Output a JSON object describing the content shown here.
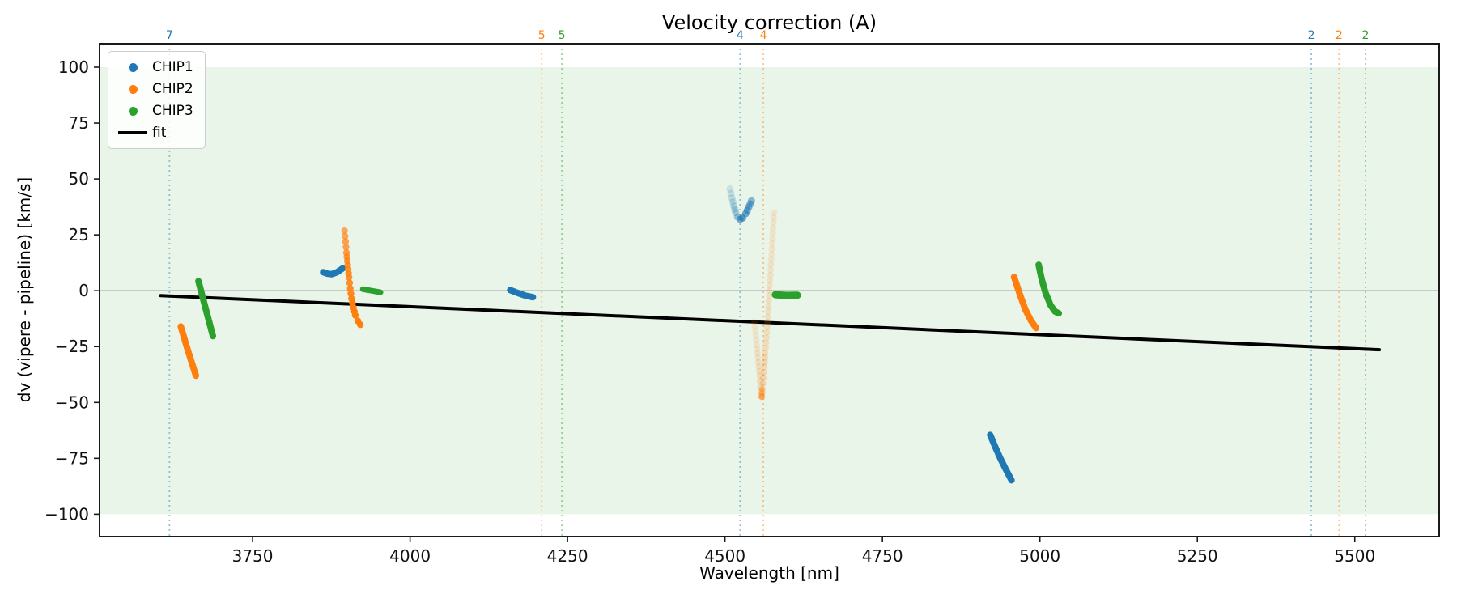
{
  "chart_data": {
    "type": "scatter",
    "title": "Velocity correction (A)",
    "xlabel": "Wavelength [nm]",
    "ylabel": "dv (vipere - pipeline) [km/s]",
    "xlim": [
      3507,
      5634
    ],
    "ylim": [
      -110,
      110.5
    ],
    "xticks": [
      3750,
      4000,
      4250,
      4500,
      4750,
      5000,
      5250,
      5500
    ],
    "yticks": [
      -100,
      -75,
      -50,
      -25,
      0,
      25,
      50,
      75,
      100
    ],
    "grid": false,
    "legend_position": "upper-left",
    "band": {
      "ymin": -100,
      "ymax": 100,
      "color": "#2ca02c",
      "opacity": 0.1
    },
    "zero_line": {
      "y": 0,
      "color": "#888888"
    },
    "fit_line": {
      "name": "fit",
      "color": "#000000",
      "width": 4,
      "points": [
        [
          3604,
          -2.2
        ],
        [
          5539,
          -26.4
        ]
      ]
    },
    "orders": [
      {
        "label": "7",
        "color": "#1f77b4",
        "wavelength": 3618
      },
      {
        "label": "5",
        "color": "#ff7f0e",
        "wavelength": 4209
      },
      {
        "label": "5",
        "color": "#2ca02c",
        "wavelength": 4241
      },
      {
        "label": "4",
        "color": "#1f77b4",
        "wavelength": 4524
      },
      {
        "label": "4",
        "color": "#ff7f0e",
        "wavelength": 4561
      },
      {
        "label": "2",
        "color": "#1f77b4",
        "wavelength": 5431
      },
      {
        "label": "2",
        "color": "#ff7f0e",
        "wavelength": 5475
      },
      {
        "label": "2",
        "color": "#2ca02c",
        "wavelength": 5517
      }
    ],
    "legend": [
      {
        "label": "CHIP1",
        "color": "#1f77b4",
        "marker": "dot"
      },
      {
        "label": "CHIP2",
        "color": "#ff7f0e",
        "marker": "dot"
      },
      {
        "label": "CHIP3",
        "color": "#2ca02c",
        "marker": "dot"
      },
      {
        "label": "fit",
        "color": "#000000",
        "marker": "line"
      }
    ],
    "series": [
      {
        "name": "CHIP1",
        "color": "#1f77b4",
        "clusters": [
          {
            "style": "line",
            "width": 8,
            "points": [
              [
                3862,
                8.3
              ],
              [
                3869,
                7.6
              ],
              [
                3876,
                7.4
              ],
              [
                3884,
                8.3
              ],
              [
                3893,
                10.0
              ]
            ]
          },
          {
            "style": "line",
            "width": 8,
            "points": [
              [
                4159,
                0.3
              ],
              [
                4170,
                -0.9
              ],
              [
                4183,
                -2.2
              ],
              [
                4195,
                -2.9
              ]
            ]
          },
          {
            "style": "dots",
            "r": 4.5,
            "spacing": 5,
            "points": [
              [
                4508,
                45.5
              ],
              [
                4511,
                41.5
              ],
              [
                4514,
                38.0
              ],
              [
                4517,
                35.0
              ],
              [
                4520,
                33.0
              ],
              [
                4524,
                32.0
              ],
              [
                4528,
                32.5
              ],
              [
                4533,
                34.5
              ],
              [
                4538,
                37.5
              ],
              [
                4542,
                40.2
              ]
            ],
            "alphas": [
              0.15,
              0.2,
              0.25,
              0.32,
              0.42,
              0.6,
              0.68,
              0.62,
              0.55,
              0.5
            ]
          },
          {
            "style": "line",
            "width": 8,
            "points": [
              [
                4921,
                -64.5
              ],
              [
                4930,
                -70.5
              ],
              [
                4938,
                -75.5
              ],
              [
                4946,
                -80.0
              ],
              [
                4955,
                -84.8
              ]
            ]
          }
        ]
      },
      {
        "name": "CHIP2",
        "color": "#ff7f0e",
        "clusters": [
          {
            "style": "line",
            "width": 8,
            "points": [
              [
                3636,
                -16.0
              ],
              [
                3647,
                -26.5
              ],
              [
                3660,
                -38.0
              ]
            ]
          },
          {
            "style": "dots",
            "r": 4.2,
            "spacing": 6,
            "points": [
              [
                3896,
                26.8
              ],
              [
                3897.5,
                22.0
              ],
              [
                3899,
                17.0
              ],
              [
                3901,
                11.5
              ],
              [
                3903,
                6.0
              ],
              [
                3905,
                1.0
              ],
              [
                3907,
                -3.5
              ],
              [
                3910,
                -7.5
              ],
              [
                3913,
                -11.0
              ],
              [
                3917,
                -13.5
              ],
              [
                3921,
                -15.2
              ]
            ],
            "alphas": [
              0.65,
              0.7,
              0.75,
              0.8,
              0.85,
              0.9,
              0.95,
              1,
              1,
              1,
              1
            ]
          },
          {
            "style": "dots",
            "r": 4.0,
            "spacing": 6,
            "points": [
              [
                4578,
                34.8
              ],
              [
                4576.5,
                28
              ],
              [
                4575,
                21
              ],
              [
                4573.5,
                14
              ],
              [
                4572,
                7
              ],
              [
                4570.5,
                0
              ],
              [
                4569,
                -7
              ],
              [
                4567.5,
                -14
              ],
              [
                4566,
                -21
              ],
              [
                4564,
                -28
              ],
              [
                4562.5,
                -34
              ],
              [
                4561,
                -39
              ],
              [
                4559.5,
                -44
              ],
              [
                4558.5,
                -47.5
              ]
            ],
            "alphas": [
              0.14,
              0.14,
              0.15,
              0.15,
              0.16,
              0.16,
              0.17,
              0.18,
              0.19,
              0.2,
              0.22,
              0.26,
              0.32,
              0.55
            ]
          },
          {
            "style": "dots",
            "r": 4.0,
            "spacing": 6,
            "points": [
              [
                4547,
                -14
              ],
              [
                4549,
                -20
              ],
              [
                4551,
                -26
              ],
              [
                4553,
                -32
              ],
              [
                4555,
                -38
              ],
              [
                4556.5,
                -43
              ],
              [
                4557.5,
                -47
              ]
            ],
            "alphas": [
              0.12,
              0.13,
              0.15,
              0.17,
              0.2,
              0.24,
              0.3
            ]
          },
          {
            "style": "line",
            "width": 8,
            "points": [
              [
                4959,
                6.2
              ],
              [
                4968,
                -1.5
              ],
              [
                4977,
                -8.5
              ],
              [
                4986,
                -13.5
              ],
              [
                4994,
                -16.7
              ]
            ]
          }
        ]
      },
      {
        "name": "CHIP3",
        "color": "#2ca02c",
        "clusters": [
          {
            "style": "line",
            "width": 8,
            "points": [
              [
                3664,
                4.3
              ],
              [
                3675,
                -7.5
              ],
              [
                3687,
                -20.3
              ]
            ]
          },
          {
            "style": "line",
            "width": 7,
            "points": [
              [
                3925,
                0.7
              ],
              [
                3939,
                0.0
              ],
              [
                3953,
                -0.7
              ]
            ]
          },
          {
            "style": "line",
            "width": 9,
            "points": [
              [
                4580,
                -1.8
              ],
              [
                4597,
                -2.1
              ],
              [
                4615,
                -2.0
              ]
            ]
          },
          {
            "style": "line",
            "width": 8,
            "points": [
              [
                4998,
                11.6
              ],
              [
                5003,
                5.0
              ],
              [
                5009,
                -1.0
              ],
              [
                5017,
                -6.5
              ],
              [
                5024,
                -9.3
              ],
              [
                5030,
                -10.1
              ]
            ]
          }
        ]
      }
    ]
  }
}
